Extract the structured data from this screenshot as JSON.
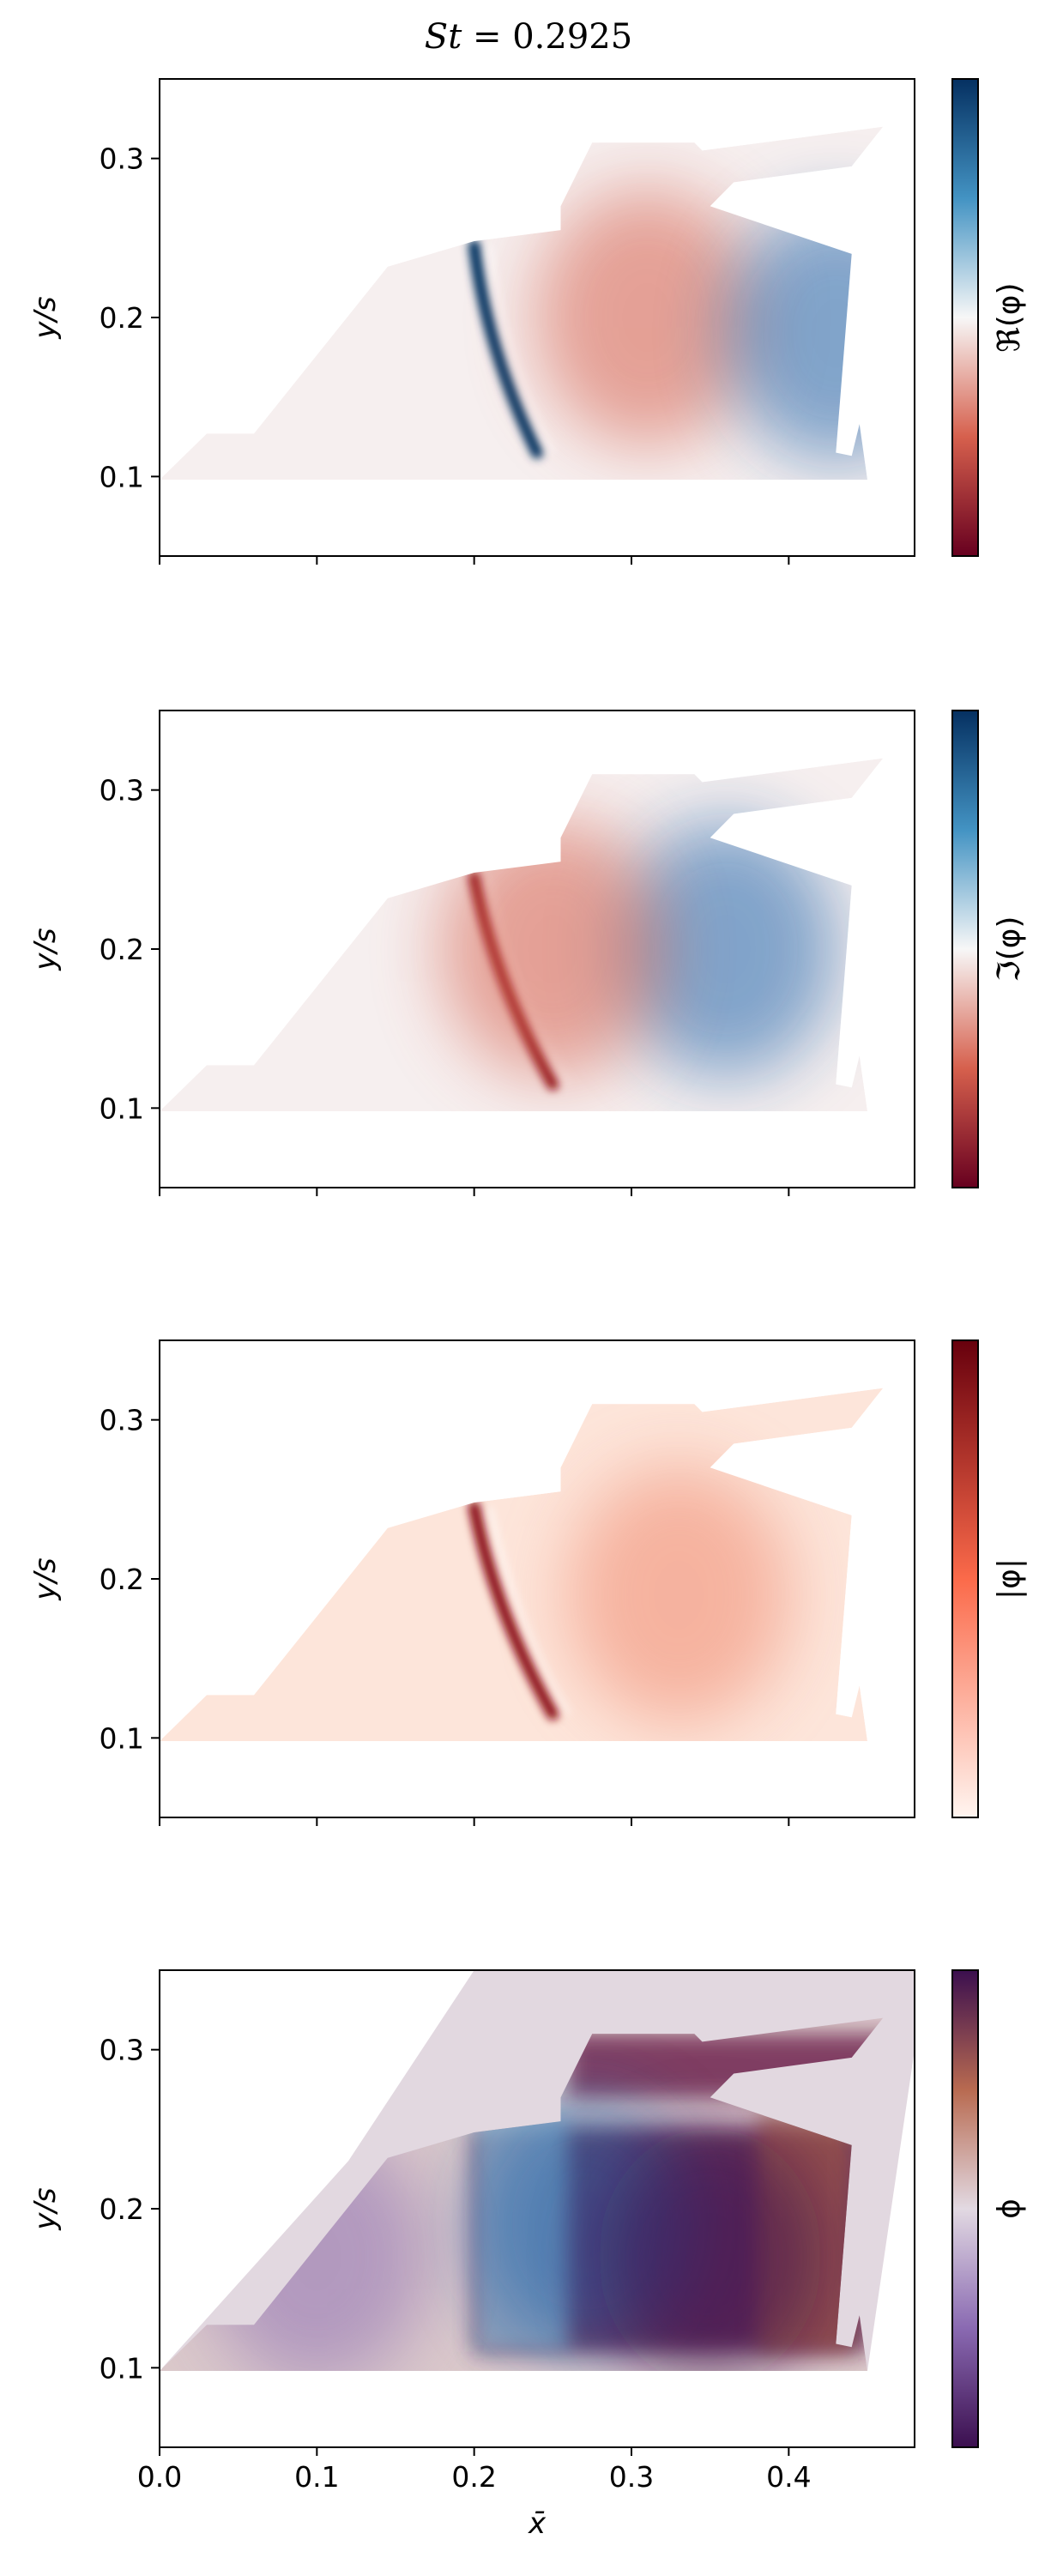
{
  "figure": {
    "title_left": "St",
    "title_right": " = 0.2925",
    "xlabel": "x̄"
  },
  "colors": {
    "rdbu_dark_red": "#67001f",
    "rdbu_red": "#d6604d",
    "rdbu_light": "#f7f7f7",
    "rdbu_blue": "#4393c3",
    "rdbu_dark_blue": "#053061",
    "reds_light": "#fff5f0",
    "reds_dark": "#67000d",
    "twilight_a": "#3b0f4f",
    "twilight_b": "#8a6ab2",
    "twilight_c": "#e2d9e2",
    "twilight_d": "#b86a50",
    "domain_tint": "#e2d8e0"
  },
  "chart_data": [
    {
      "type": "heatmap",
      "field": "real part of DMD mode",
      "colorbar_label": "ℜ(φ)",
      "colormap": "RdBu",
      "x_ticks": [
        "0.0",
        "0.1",
        "0.2",
        "0.3",
        "0.4"
      ],
      "y_ticks": [
        "0.1",
        "0.2",
        "0.3"
      ],
      "xlim": [
        0.0,
        0.48
      ],
      "ylim": [
        0.05,
        0.35
      ],
      "ylabel": "y/s",
      "show_xticklabels": false,
      "features": [
        {
          "kind": "shock",
          "x_top": 0.2,
          "y_top": 0.245,
          "x_bottom": 0.24,
          "y_bottom": 0.115,
          "sign": "blue"
        },
        {
          "kind": "blob",
          "x": 0.31,
          "y": 0.2,
          "sign": "red"
        },
        {
          "kind": "blob",
          "x": 0.43,
          "y": 0.19,
          "sign": "blue"
        }
      ]
    },
    {
      "type": "heatmap",
      "field": "imaginary part of DMD mode",
      "colorbar_label": "ℑ(φ)",
      "colormap": "RdBu",
      "x_ticks": [
        "0.0",
        "0.1",
        "0.2",
        "0.3",
        "0.4"
      ],
      "y_ticks": [
        "0.1",
        "0.2",
        "0.3"
      ],
      "xlim": [
        0.0,
        0.48
      ],
      "ylim": [
        0.05,
        0.35
      ],
      "ylabel": "y/s",
      "show_xticklabels": false,
      "features": [
        {
          "kind": "shock",
          "x_top": 0.2,
          "y_top": 0.245,
          "x_bottom": 0.25,
          "y_bottom": 0.115,
          "sign": "red"
        },
        {
          "kind": "blob",
          "x": 0.36,
          "y": 0.2,
          "sign": "blue"
        },
        {
          "kind": "blob",
          "x": 0.25,
          "y": 0.2,
          "sign": "red"
        }
      ]
    },
    {
      "type": "heatmap",
      "field": "magnitude of DMD mode",
      "colorbar_label": "|φ|",
      "colormap": "Reds",
      "x_ticks": [
        "0.0",
        "0.1",
        "0.2",
        "0.3",
        "0.4"
      ],
      "y_ticks": [
        "0.1",
        "0.2",
        "0.3"
      ],
      "xlim": [
        0.0,
        0.48
      ],
      "ylim": [
        0.05,
        0.35
      ],
      "ylabel": "y/s",
      "show_xticklabels": false,
      "features": [
        {
          "kind": "shock",
          "x_top": 0.2,
          "y_top": 0.245,
          "x_bottom": 0.25,
          "y_bottom": 0.115,
          "sign": "red"
        },
        {
          "kind": "blob",
          "x": 0.33,
          "y": 0.19,
          "sign": "red"
        }
      ]
    },
    {
      "type": "heatmap",
      "field": "phase of DMD mode",
      "colorbar_label": "ϕ",
      "colormap": "twilight_shifted",
      "x_ticks": [
        "0.0",
        "0.1",
        "0.2",
        "0.3",
        "0.4"
      ],
      "y_ticks": [
        "0.1",
        "0.2",
        "0.3"
      ],
      "xlim": [
        0.0,
        0.48
      ],
      "ylim": [
        0.05,
        0.35
      ],
      "ylabel": "y/s",
      "show_xticklabels": true,
      "features": [
        {
          "kind": "blob",
          "x": 0.27,
          "y": 0.19,
          "sign": "blue"
        },
        {
          "kind": "blob",
          "x": 0.35,
          "y": 0.17,
          "sign": "dark"
        },
        {
          "kind": "noise",
          "x": 0.1,
          "y": 0.17,
          "sign": "mixed"
        }
      ]
    }
  ]
}
